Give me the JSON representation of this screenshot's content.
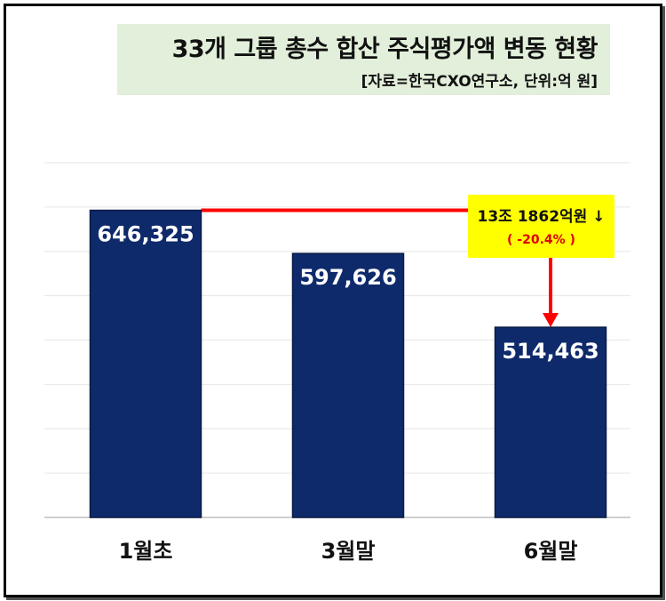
{
  "chart_data": {
    "type": "bar",
    "title": "33개 그룹 총수 합산 주식평가액 변동 현황",
    "subtitle": "[자료=한국CXO연구소, 단위:억 원]",
    "categories": [
      "1월초",
      "3월말",
      "6월말"
    ],
    "values": [
      646325,
      597626,
      514463
    ],
    "value_labels": [
      "646,325",
      "597,626",
      "514,463"
    ],
    "xlabel": "",
    "ylabel": "",
    "ylim": [
      300000,
      700000
    ],
    "grid_step": 50000,
    "grid": true,
    "bar_color": "#0f2a6b",
    "annotation": {
      "text": "13조 1862억원 ↓",
      "percent": "( -20.4% )",
      "line_color": "#ff0000",
      "box_color": "#ffff00"
    }
  }
}
